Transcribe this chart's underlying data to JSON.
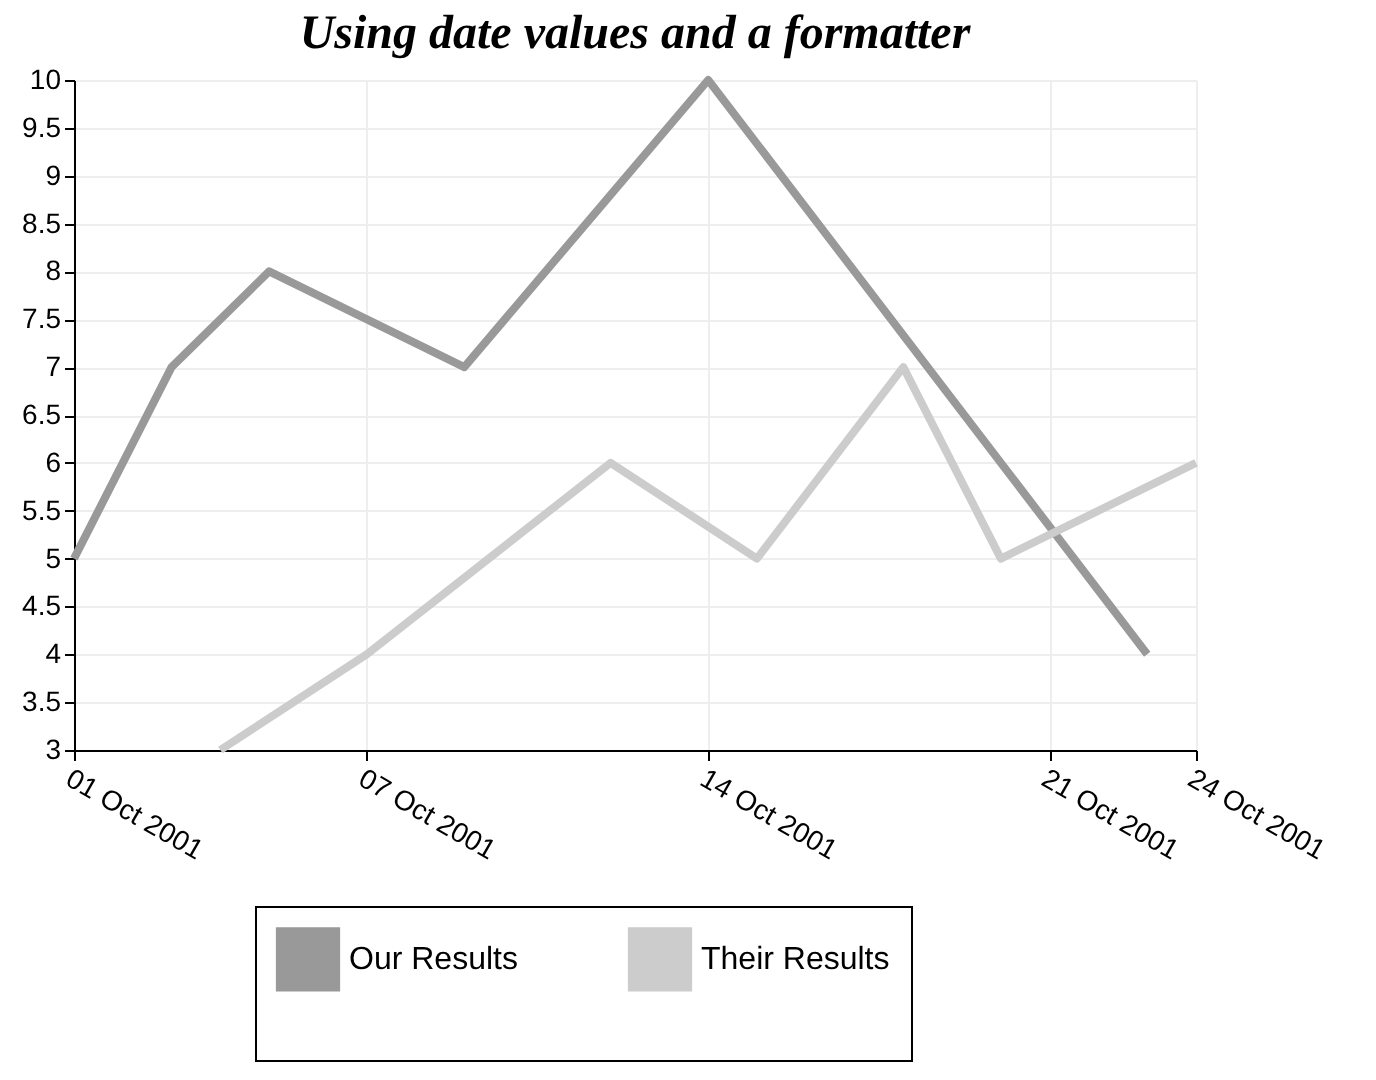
{
  "chart_data": {
    "type": "line",
    "title": "Using date values and a formatter",
    "series": [
      {
        "name": "Our Results",
        "color": "#999999",
        "x": [
          "2001-10-01",
          "2001-10-03",
          "2001-10-05",
          "2001-10-09",
          "2001-10-14",
          "2001-10-23"
        ],
        "values": [
          5,
          7,
          8,
          7,
          10,
          4
        ]
      },
      {
        "name": "Their Results",
        "color": "#cccccc",
        "x": [
          "2001-10-04",
          "2001-10-07",
          "2001-10-12",
          "2001-10-15",
          "2001-10-18",
          "2001-10-20",
          "2001-10-24"
        ],
        "values": [
          3,
          4,
          6,
          5,
          7,
          5,
          6
        ]
      }
    ],
    "xlim": [
      "2001-10-01",
      "2001-10-24"
    ],
    "xticks": [
      {
        "value": "2001-10-01",
        "label": "01 Oct 2001"
      },
      {
        "value": "2001-10-07",
        "label": "07 Oct 2001"
      },
      {
        "value": "2001-10-14",
        "label": "14 Oct 2001"
      },
      {
        "value": "2001-10-21",
        "label": "21 Oct 2001"
      },
      {
        "value": "2001-10-24",
        "label": "24 Oct 2001"
      }
    ],
    "ylim": [
      3,
      10
    ],
    "yticks": [
      3,
      3.5,
      4,
      4.5,
      5,
      5.5,
      6,
      6.5,
      7,
      7.5,
      8,
      8.5,
      9,
      9.5,
      10
    ],
    "grid": true,
    "legend": "bottom",
    "marker": "none",
    "line_style": "solid"
  }
}
